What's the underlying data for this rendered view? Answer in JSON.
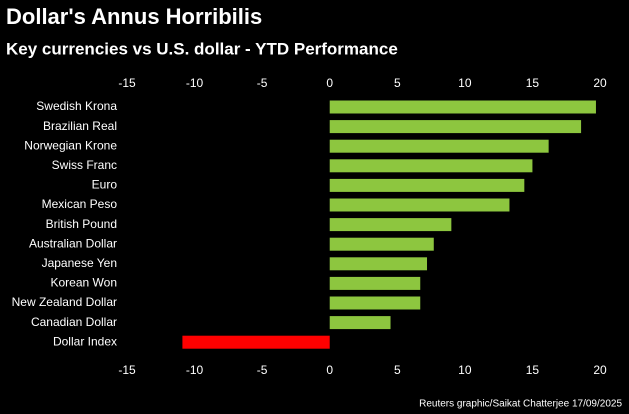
{
  "chart_data": {
    "type": "hbar",
    "title": "Dollar's Annus Horribilis",
    "subtitle": "Key currencies vs U.S. dollar - YTD Performance",
    "source": "Reuters graphic/Saikat Chatterjee 17/09/2025",
    "categories": [
      "Swedish Krona",
      "Brazilian Real",
      "Norwegian Krone",
      "Swiss Franc",
      "Euro",
      "Mexican Peso",
      "British Pound",
      "Australian Dollar",
      "Japanese Yen",
      "Korean Won",
      "New Zealand Dollar",
      "Canadian Dollar",
      "Dollar Index"
    ],
    "values": [
      19.7,
      18.6,
      16.2,
      15.0,
      14.4,
      13.3,
      9.0,
      7.7,
      7.2,
      6.7,
      6.7,
      4.5,
      -10.9
    ],
    "color": "#8dc63f",
    "negative_color": "#ff0000",
    "xlim": [
      -15,
      20
    ],
    "xticks": [
      -15,
      -10,
      -5,
      0,
      5,
      10,
      15,
      20
    ]
  }
}
